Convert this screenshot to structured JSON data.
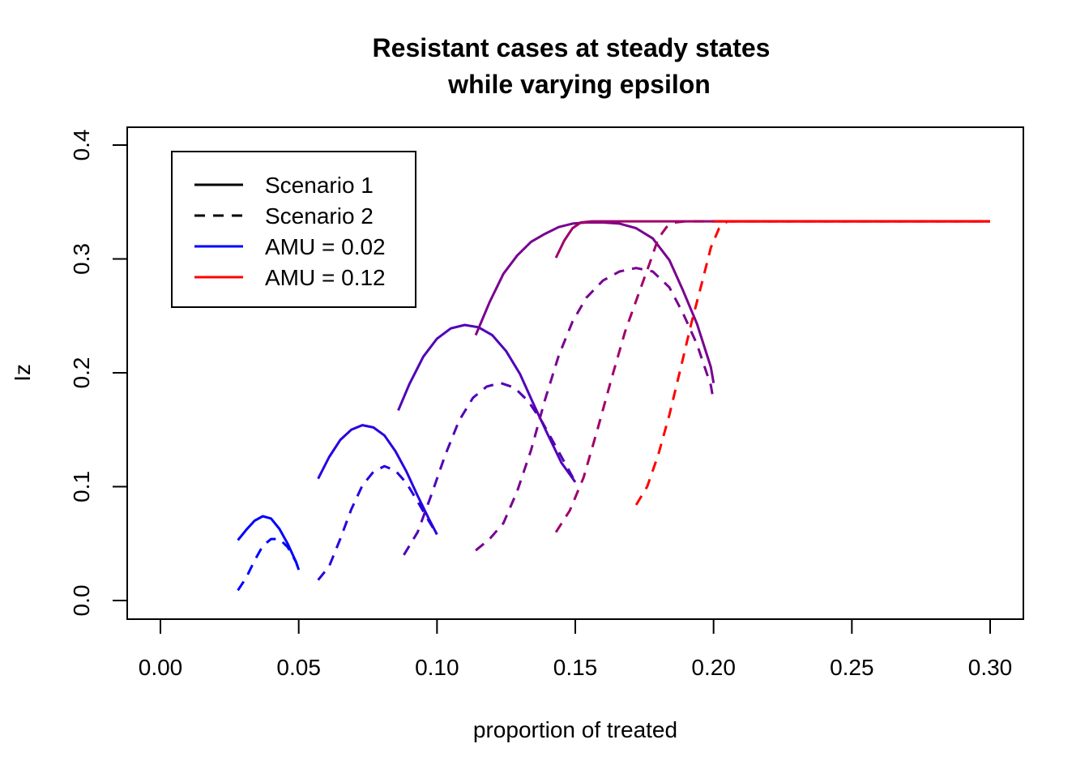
{
  "chart_data": {
    "type": "line",
    "title": [
      "Resistant cases at steady states",
      "while varying epsilon"
    ],
    "xlabel": "proportion of treated",
    "ylabel": "Iz",
    "xlim": [
      0.0,
      0.3
    ],
    "ylim": [
      0.0,
      0.4
    ],
    "x_ticks": [
      "0.00",
      "0.05",
      "0.10",
      "0.15",
      "0.20",
      "0.25",
      "0.30"
    ],
    "y_ticks": [
      "0.0",
      "0.1",
      "0.2",
      "0.3",
      "0.4"
    ],
    "grid": false,
    "legend": {
      "position": "top-left",
      "entries": [
        {
          "label": "Scenario 1",
          "style": "solid",
          "color": "#000000"
        },
        {
          "label": "Scenario 2",
          "style": "dashed",
          "color": "#000000"
        },
        {
          "label": "AMU = 0.02",
          "style": "solid",
          "color": "#0000FF"
        },
        {
          "label": "AMU = 0.12",
          "style": "solid",
          "color": "#FF0000"
        }
      ]
    },
    "series": [
      {
        "style": "solid",
        "color": "#0000FF",
        "points": [
          [
            0.028,
            0.053
          ],
          [
            0.031,
            0.062
          ],
          [
            0.034,
            0.07
          ],
          [
            0.037,
            0.074
          ],
          [
            0.04,
            0.072
          ],
          [
            0.043,
            0.063
          ],
          [
            0.046,
            0.05
          ],
          [
            0.049,
            0.034
          ],
          [
            0.05,
            0.027
          ]
        ]
      },
      {
        "style": "dashed",
        "color": "#0000FF",
        "points": [
          [
            0.028,
            0.009
          ],
          [
            0.031,
            0.02
          ],
          [
            0.034,
            0.035
          ],
          [
            0.037,
            0.048
          ],
          [
            0.04,
            0.054
          ],
          [
            0.043,
            0.054
          ],
          [
            0.046,
            0.047
          ],
          [
            0.049,
            0.034
          ],
          [
            0.05,
            0.027
          ]
        ]
      },
      {
        "style": "solid",
        "color": "#2800E0",
        "points": [
          [
            0.057,
            0.107
          ],
          [
            0.061,
            0.126
          ],
          [
            0.065,
            0.141
          ],
          [
            0.069,
            0.15
          ],
          [
            0.073,
            0.154
          ],
          [
            0.077,
            0.152
          ],
          [
            0.081,
            0.145
          ],
          [
            0.085,
            0.131
          ],
          [
            0.089,
            0.113
          ],
          [
            0.093,
            0.092
          ],
          [
            0.097,
            0.072
          ],
          [
            0.1,
            0.058
          ]
        ]
      },
      {
        "style": "dashed",
        "color": "#2800E0",
        "points": [
          [
            0.057,
            0.018
          ],
          [
            0.061,
            0.03
          ],
          [
            0.065,
            0.054
          ],
          [
            0.069,
            0.08
          ],
          [
            0.073,
            0.101
          ],
          [
            0.077,
            0.113
          ],
          [
            0.081,
            0.118
          ],
          [
            0.085,
            0.114
          ],
          [
            0.089,
            0.103
          ],
          [
            0.093,
            0.087
          ],
          [
            0.097,
            0.07
          ],
          [
            0.1,
            0.058
          ]
        ]
      },
      {
        "style": "solid",
        "color": "#5000B8",
        "points": [
          [
            0.086,
            0.167
          ],
          [
            0.09,
            0.19
          ],
          [
            0.095,
            0.214
          ],
          [
            0.1,
            0.23
          ],
          [
            0.105,
            0.239
          ],
          [
            0.11,
            0.242
          ],
          [
            0.115,
            0.24
          ],
          [
            0.12,
            0.233
          ],
          [
            0.125,
            0.219
          ],
          [
            0.13,
            0.199
          ],
          [
            0.135,
            0.172
          ],
          [
            0.14,
            0.146
          ],
          [
            0.145,
            0.121
          ],
          [
            0.15,
            0.104
          ]
        ]
      },
      {
        "style": "dashed",
        "color": "#5000B8",
        "points": [
          [
            0.088,
            0.04
          ],
          [
            0.093,
            0.06
          ],
          [
            0.098,
            0.093
          ],
          [
            0.103,
            0.128
          ],
          [
            0.108,
            0.158
          ],
          [
            0.113,
            0.178
          ],
          [
            0.118,
            0.188
          ],
          [
            0.123,
            0.191
          ],
          [
            0.128,
            0.187
          ],
          [
            0.133,
            0.175
          ],
          [
            0.138,
            0.157
          ],
          [
            0.143,
            0.135
          ],
          [
            0.148,
            0.113
          ],
          [
            0.15,
            0.104
          ]
        ]
      },
      {
        "style": "solid",
        "color": "#780090",
        "points": [
          [
            0.114,
            0.233
          ],
          [
            0.119,
            0.262
          ],
          [
            0.124,
            0.287
          ],
          [
            0.129,
            0.303
          ],
          [
            0.134,
            0.315
          ],
          [
            0.139,
            0.322
          ],
          [
            0.144,
            0.328
          ],
          [
            0.149,
            0.331
          ],
          [
            0.154,
            0.332
          ],
          [
            0.16,
            0.332
          ],
          [
            0.166,
            0.331
          ],
          [
            0.172,
            0.327
          ],
          [
            0.178,
            0.318
          ],
          [
            0.184,
            0.299
          ],
          [
            0.189,
            0.272
          ],
          [
            0.194,
            0.243
          ],
          [
            0.199,
            0.205
          ],
          [
            0.2,
            0.191
          ]
        ]
      },
      {
        "style": "dashed",
        "color": "#780090",
        "points": [
          [
            0.114,
            0.044
          ],
          [
            0.119,
            0.054
          ],
          [
            0.124,
            0.068
          ],
          [
            0.129,
            0.096
          ],
          [
            0.134,
            0.132
          ],
          [
            0.139,
            0.176
          ],
          [
            0.144,
            0.215
          ],
          [
            0.149,
            0.245
          ],
          [
            0.154,
            0.266
          ],
          [
            0.16,
            0.281
          ],
          [
            0.166,
            0.289
          ],
          [
            0.172,
            0.292
          ],
          [
            0.178,
            0.289
          ],
          [
            0.184,
            0.275
          ],
          [
            0.189,
            0.252
          ],
          [
            0.194,
            0.225
          ],
          [
            0.199,
            0.189
          ],
          [
            0.2,
            0.175
          ]
        ]
      },
      {
        "style": "solid",
        "color": "#A00068",
        "points": [
          [
            0.143,
            0.301
          ],
          [
            0.146,
            0.316
          ],
          [
            0.149,
            0.327
          ],
          [
            0.152,
            0.332
          ],
          [
            0.156,
            0.333
          ],
          [
            0.18,
            0.333
          ],
          [
            0.21,
            0.333
          ],
          [
            0.24,
            0.333
          ],
          [
            0.27,
            0.333
          ],
          [
            0.3,
            0.333
          ]
        ]
      },
      {
        "style": "dashed",
        "color": "#A00068",
        "points": [
          [
            0.143,
            0.06
          ],
          [
            0.148,
            0.079
          ],
          [
            0.153,
            0.108
          ],
          [
            0.158,
            0.15
          ],
          [
            0.163,
            0.194
          ],
          [
            0.168,
            0.236
          ],
          [
            0.173,
            0.27
          ],
          [
            0.177,
            0.297
          ],
          [
            0.18,
            0.318
          ],
          [
            0.183,
            0.328
          ],
          [
            0.186,
            0.332
          ],
          [
            0.19,
            0.333
          ],
          [
            0.21,
            0.333
          ],
          [
            0.24,
            0.333
          ],
          [
            0.27,
            0.333
          ],
          [
            0.3,
            0.333
          ]
        ]
      },
      {
        "style": "dashed",
        "color": "#FF0000",
        "points": [
          [
            0.172,
            0.084
          ],
          [
            0.176,
            0.1
          ],
          [
            0.18,
            0.128
          ],
          [
            0.184,
            0.163
          ],
          [
            0.188,
            0.203
          ],
          [
            0.192,
            0.244
          ],
          [
            0.196,
            0.281
          ],
          [
            0.199,
            0.31
          ],
          [
            0.202,
            0.327
          ],
          [
            0.205,
            0.333
          ],
          [
            0.21,
            0.333
          ],
          [
            0.24,
            0.333
          ],
          [
            0.27,
            0.333
          ],
          [
            0.3,
            0.333
          ]
        ]
      },
      {
        "style": "solid",
        "color": "#FF0000",
        "points": [
          [
            0.2,
            0.333
          ],
          [
            0.24,
            0.333
          ],
          [
            0.27,
            0.333
          ],
          [
            0.3,
            0.333
          ]
        ]
      }
    ]
  }
}
